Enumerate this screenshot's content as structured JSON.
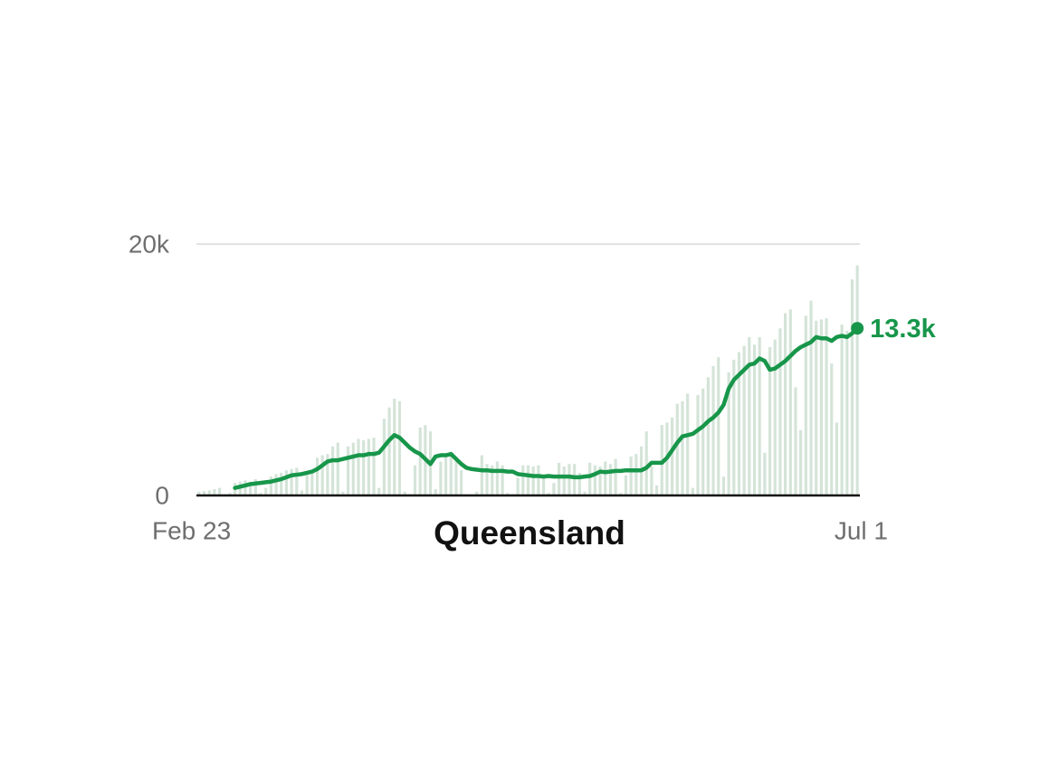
{
  "chart_data": {
    "type": "bar-line",
    "title": "Queensland",
    "categories": [
      "Feb 23",
      null,
      null,
      null,
      null,
      null,
      null,
      null,
      null,
      null,
      null,
      null,
      null,
      null,
      null,
      null,
      null,
      null,
      null,
      null,
      null,
      null,
      null,
      null,
      null,
      null,
      null,
      null,
      null,
      null,
      null,
      null,
      null,
      null,
      null,
      null,
      null,
      null,
      null,
      null,
      null,
      null,
      null,
      null,
      null,
      null,
      null,
      null,
      null,
      null,
      null,
      null,
      null,
      null,
      null,
      null,
      null,
      null,
      null,
      null,
      null,
      null,
      null,
      null,
      null,
      null,
      null,
      null,
      null,
      null,
      null,
      null,
      null,
      null,
      null,
      null,
      null,
      null,
      null,
      null,
      null,
      null,
      null,
      null,
      null,
      null,
      null,
      null,
      null,
      null,
      null,
      null,
      null,
      null,
      null,
      null,
      null,
      null,
      null,
      null,
      null,
      null,
      null,
      null,
      null,
      null,
      null,
      null,
      null,
      null,
      null,
      null,
      null,
      null,
      null,
      null,
      null,
      null,
      null,
      null,
      null,
      null,
      null,
      null,
      null,
      null,
      null,
      null,
      "Jul 1"
    ],
    "ylim": [
      0,
      20000
    ],
    "yticks": [
      0,
      {
        "value": 20000,
        "label": "20k"
      }
    ],
    "grid": true,
    "series": [
      {
        "type": "bar",
        "color": "#d4e4d8",
        "values": [
          300,
          350,
          400,
          500,
          600,
          100,
          200,
          1000,
          1100,
          1200,
          1100,
          1300,
          200,
          600,
          1500,
          1700,
          1800,
          2000,
          2100,
          2200,
          400,
          1900,
          2000,
          3000,
          3200,
          3300,
          3900,
          4200,
          300,
          3900,
          4200,
          4500,
          4400,
          4500,
          4600,
          600,
          6100,
          7000,
          7700,
          7500,
          300,
          100,
          2400,
          5400,
          5600,
          5100,
          500,
          2700,
          3300,
          3400,
          2900,
          2000,
          100,
          100,
          300,
          3200,
          2500,
          2400,
          2700,
          2400,
          200,
          100,
          1400,
          2400,
          2400,
          2300,
          2400,
          1500,
          200,
          1000,
          2600,
          2300,
          2500,
          2500,
          1800,
          300,
          2600,
          2400,
          2300,
          2700,
          2500,
          2900,
          200,
          1600,
          3100,
          3300,
          3900,
          5100,
          2300,
          800,
          5600,
          5800,
          6200,
          7300,
          7500,
          8100,
          600,
          8000,
          8500,
          9400,
          10300,
          11000,
          1500,
          9800,
          10800,
          11400,
          11900,
          12600,
          12000,
          12600,
          3400,
          11800,
          12400,
          13300,
          14500,
          14800,
          8600,
          5200,
          14300,
          15500,
          13900,
          14000,
          14100,
          10500,
          5800,
          13600,
          13100,
          17200,
          18300
        ]
      },
      {
        "type": "line",
        "color": "#17964a",
        "values": [
          null,
          null,
          null,
          null,
          null,
          null,
          null,
          600,
          700,
          800,
          900,
          950,
          1000,
          1050,
          1100,
          1200,
          1300,
          1450,
          1600,
          1650,
          1700,
          1800,
          1900,
          2100,
          2400,
          2700,
          2800,
          2800,
          2900,
          3000,
          3100,
          3200,
          3200,
          3300,
          3300,
          3400,
          3900,
          4400,
          4800,
          4600,
          4200,
          3800,
          3500,
          3300,
          2900,
          2500,
          3100,
          3200,
          3200,
          3300,
          2900,
          2500,
          2200,
          2100,
          2050,
          2000,
          2000,
          1950,
          1950,
          1950,
          1900,
          1900,
          1700,
          1650,
          1600,
          1550,
          1550,
          1500,
          1550,
          1500,
          1500,
          1500,
          1500,
          1450,
          1450,
          1500,
          1550,
          1700,
          1900,
          1850,
          1900,
          1950,
          1950,
          2000,
          2000,
          2000,
          2000,
          2200,
          2600,
          2600,
          2600,
          3000,
          3600,
          4200,
          4700,
          4800,
          4900,
          5200,
          5500,
          5900,
          6200,
          6600,
          7200,
          8500,
          9200,
          9600,
          10000,
          10400,
          10500,
          10900,
          10700,
          10000,
          10100,
          10400,
          10700,
          11100,
          11500,
          11800,
          12000,
          12200,
          12600,
          12500,
          12500,
          12300,
          12600,
          12700,
          12600,
          12900,
          13300
        ],
        "value_labels": [
          null,
          null,
          null,
          null,
          null,
          null,
          null,
          null,
          null,
          null,
          null,
          null,
          null,
          null,
          null,
          null,
          null,
          null,
          null,
          null,
          null,
          null,
          null,
          null,
          null,
          null,
          null,
          null,
          null,
          null,
          null,
          null,
          null,
          null,
          null,
          null,
          null,
          null,
          null,
          null,
          null,
          null,
          null,
          null,
          null,
          null,
          null,
          null,
          null,
          null,
          null,
          null,
          null,
          null,
          null,
          null,
          null,
          null,
          null,
          null,
          null,
          null,
          null,
          null,
          null,
          null,
          null,
          null,
          null,
          null,
          null,
          null,
          null,
          null,
          null,
          null,
          null,
          null,
          null,
          null,
          null,
          null,
          null,
          null,
          null,
          null,
          null,
          null,
          null,
          null,
          null,
          null,
          null,
          null,
          null,
          null,
          null,
          null,
          null,
          null,
          null,
          null,
          null,
          null,
          null,
          null,
          null,
          null,
          null,
          null,
          null,
          null,
          null,
          null,
          null,
          null,
          null,
          null,
          null,
          null,
          null,
          null,
          null,
          null,
          null,
          null,
          null,
          null,
          "13.3k"
        ]
      }
    ]
  }
}
